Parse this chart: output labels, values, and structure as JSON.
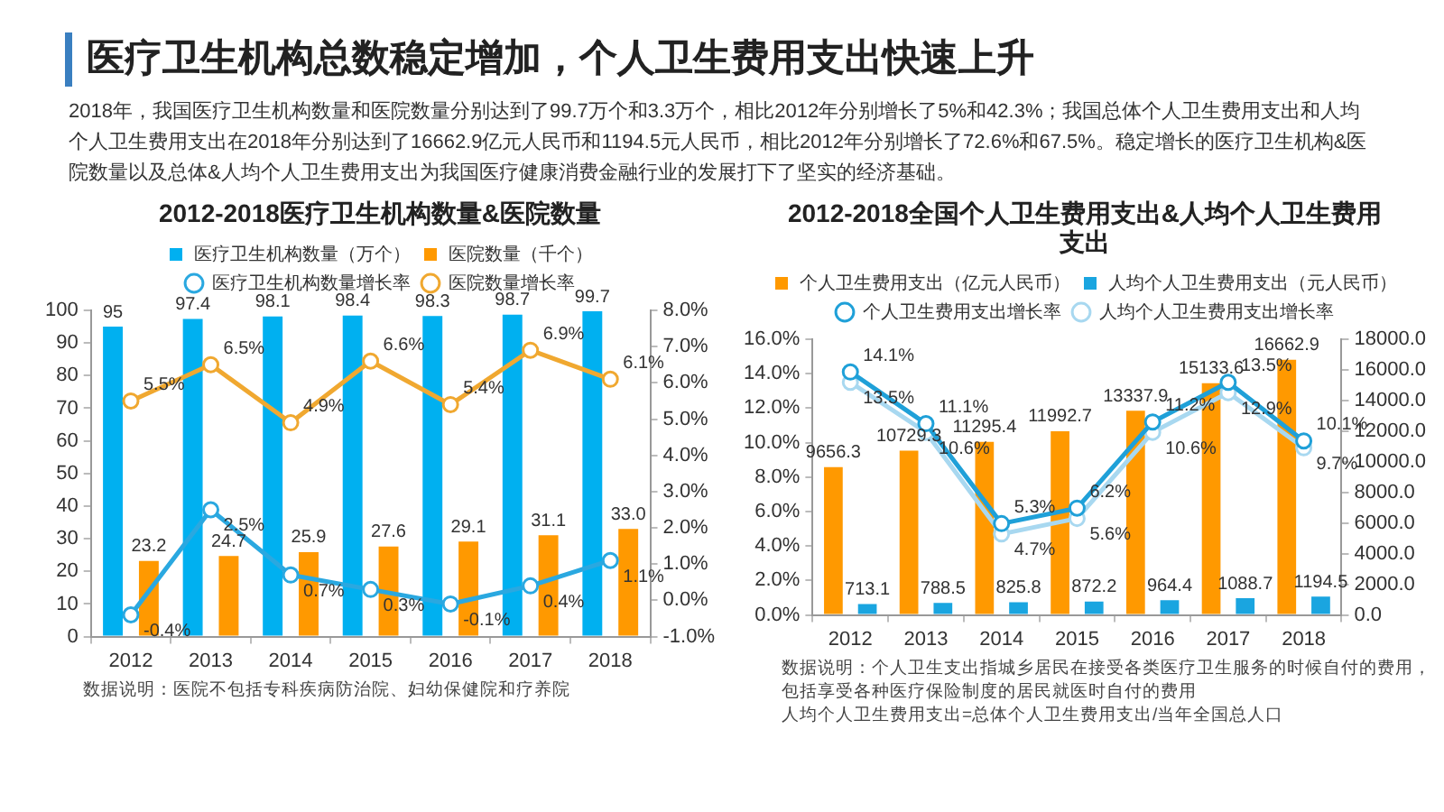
{
  "chart_data": [
    {
      "type": "other",
      "title": "医疗卫生机构总数稳定增加，个人卫生费用支出快速上升",
      "annotations": [
        "2018年，我国医疗卫生机构数量和医院数量分别达到了99.7万个和3.3万个，相比2012年分别增长了5%和42.3%；我国总体个人卫生费用支出和人均个人卫生费用支出在2018年分别达到了16662.9亿元人民币和1194.5元人民币，相比2012年分别增长了72.6%和67.5%。稳定增长的医疗卫生机构&医院数量以及总体&人均个人卫生费用支出为我国医疗健康消费金融行业的发展打下了坚实的经济基础。"
      ]
    },
    {
      "type": "bar",
      "title": "2012-2018医疗卫生机构数量&医院数量",
      "categories": [
        "2012",
        "2013",
        "2014",
        "2015",
        "2016",
        "2017",
        "2018"
      ],
      "series": [
        {
          "name": "医疗卫生机构数量（万个）",
          "color": "#00b0f0",
          "values": [
            95,
            97.4,
            98.1,
            98.4,
            98.3,
            98.7,
            99.7
          ],
          "value_labels": [
            "95",
            "97.4",
            "98.1",
            "98.4",
            "98.3",
            "98.7",
            "99.7"
          ]
        },
        {
          "name": "医院数量（千个）",
          "color": "#ff9900",
          "values": [
            23.2,
            24.7,
            25.9,
            27.6,
            29.1,
            31.1,
            33.0
          ],
          "value_labels": [
            "23.2",
            "24.7",
            "25.9",
            "27.6",
            "29.1",
            "31.1",
            "33.0"
          ]
        },
        {
          "name": "医疗卫生机构数量增长率",
          "type": "line",
          "axis": "y2",
          "color": "#2aa8e0",
          "values": [
            -0.4,
            2.5,
            0.7,
            0.3,
            -0.1,
            0.4,
            1.1
          ],
          "value_labels": [
            "-0.4%",
            "2.5%",
            "0.7%",
            "0.3%",
            "-0.1%",
            "0.4%",
            "1.1%"
          ]
        },
        {
          "name": "医院数量增长率",
          "type": "line",
          "axis": "y2",
          "color": "#f0a830",
          "values": [
            5.5,
            6.5,
            4.9,
            6.6,
            5.4,
            6.9,
            6.1
          ],
          "value_labels": [
            "5.5%",
            "6.5%",
            "4.9%",
            "6.6%",
            "5.4%",
            "6.9%",
            "6.1%"
          ]
        }
      ],
      "ylim": [
        0,
        100
      ],
      "yticks": [
        0,
        10,
        20,
        30,
        40,
        50,
        60,
        70,
        80,
        90,
        100
      ],
      "y2lim": [
        -1,
        8
      ],
      "y2ticks": [
        {
          "value": -1,
          "label": "-1.0%"
        },
        {
          "value": 0,
          "label": "0.0%"
        },
        {
          "value": 1,
          "label": "1.0%"
        },
        {
          "value": 2,
          "label": "2.0%"
        },
        {
          "value": 3,
          "label": "3.0%"
        },
        {
          "value": 4,
          "label": "4.0%"
        },
        {
          "value": 5,
          "label": "5.0%"
        },
        {
          "value": 6,
          "label": "6.0%"
        },
        {
          "value": 7,
          "label": "7.0%"
        },
        {
          "value": 8,
          "label": "8.0%"
        }
      ],
      "legend": "top",
      "marker": "circle",
      "line_style": "solid",
      "annotations": [
        "数据说明：医院不包括专科疾病防治院、妇幼保健院和疗养院"
      ]
    },
    {
      "type": "bar",
      "title": "2012-2018全国个人卫生费用支出&人均个人卫生费用支出",
      "categories": [
        "2012",
        "2013",
        "2014",
        "2015",
        "2016",
        "2017",
        "2018"
      ],
      "series": [
        {
          "name": "个人卫生费用支出（亿元人民币）",
          "axis": "y2",
          "color": "#ff9900",
          "values": [
            9656.3,
            10729.3,
            11295.4,
            11992.7,
            13337.9,
            15133.6,
            16662.9
          ],
          "value_labels": [
            "9656.3",
            "10729.3",
            "11295.4",
            "11992.7",
            "13337.9",
            "15133.6",
            "16662.9"
          ]
        },
        {
          "name": "人均个人卫生费用支出（元人民币）",
          "axis": "y2",
          "color": "#1aa5e0",
          "values": [
            713.1,
            788.5,
            825.8,
            872.2,
            964.4,
            1088.7,
            1194.5
          ],
          "value_labels": [
            "713.1",
            "788.5",
            "825.8",
            "872.2",
            "964.4",
            "1088.7",
            "1194.5"
          ]
        },
        {
          "name": "个人卫生费用支出增长率",
          "type": "line",
          "color": "#1fa0d8",
          "values": [
            14.1,
            11.1,
            5.3,
            6.2,
            11.2,
            13.5,
            10.1
          ],
          "value_labels": [
            "14.1%",
            "11.1%",
            "5.3%",
            "6.2%",
            "11.2%",
            "13.5%",
            "10.1%"
          ]
        },
        {
          "name": "人均个人卫生费用支出增长率",
          "type": "line",
          "color": "#a8d8f0",
          "values": [
            13.5,
            10.6,
            4.7,
            5.6,
            10.6,
            12.9,
            9.7
          ],
          "value_labels": [
            "13.5%",
            "10.6%",
            "4.7%",
            "5.6%",
            "10.6%",
            "12.9%",
            "9.7%"
          ]
        }
      ],
      "ylim": [
        0,
        16
      ],
      "yticks": [
        {
          "value": 0,
          "label": "0.0%"
        },
        {
          "value": 2,
          "label": "2.0%"
        },
        {
          "value": 4,
          "label": "4.0%"
        },
        {
          "value": 6,
          "label": "6.0%"
        },
        {
          "value": 8,
          "label": "8.0%"
        },
        {
          "value": 10,
          "label": "10.0%"
        },
        {
          "value": 12,
          "label": "12.0%"
        },
        {
          "value": 14,
          "label": "14.0%"
        },
        {
          "value": 16,
          "label": "16.0%"
        }
      ],
      "y2lim": [
        0,
        18000
      ],
      "y2ticks": [
        {
          "value": 0,
          "label": "0.0"
        },
        {
          "value": 2000,
          "label": "2000.0"
        },
        {
          "value": 4000,
          "label": "4000.0"
        },
        {
          "value": 6000,
          "label": "6000.0"
        },
        {
          "value": 8000,
          "label": "8000.0"
        },
        {
          "value": 10000,
          "label": "10000.0"
        },
        {
          "value": 12000,
          "label": "12000.0"
        },
        {
          "value": 14000,
          "label": "14000.0"
        },
        {
          "value": 16000,
          "label": "16000.0"
        },
        {
          "value": 18000,
          "label": "18000.0"
        }
      ],
      "legend": "top",
      "marker": "circle",
      "line_style": "solid",
      "annotations": [
        "数据说明：个人卫生支出指城乡居民在接受各类医疗卫生服务的时候自付的费用，包括享受各种医疗保险制度的居民就医时自付的费用",
        "人均个人卫生费用支出=总体个人卫生费用支出/当年全国总人口"
      ]
    }
  ]
}
